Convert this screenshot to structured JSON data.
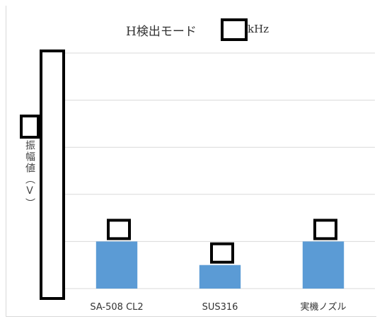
{
  "chart_data": {
    "type": "bar",
    "title_prefix": "H検出モード",
    "title_suffix": "kHz",
    "ylabel": "振幅値（V）",
    "categories": [
      "SA-508 CL2",
      "SUS316",
      "実機ノズル"
    ],
    "series": [
      {
        "values": [
          1.0,
          0.5,
          1.0
        ]
      }
    ],
    "ylim": [
      0,
      5
    ],
    "grid": true,
    "legend": "none",
    "bar_color": "#5b9bd5",
    "redacted": [
      "title number",
      "y-axis tick labels",
      "data labels"
    ]
  }
}
